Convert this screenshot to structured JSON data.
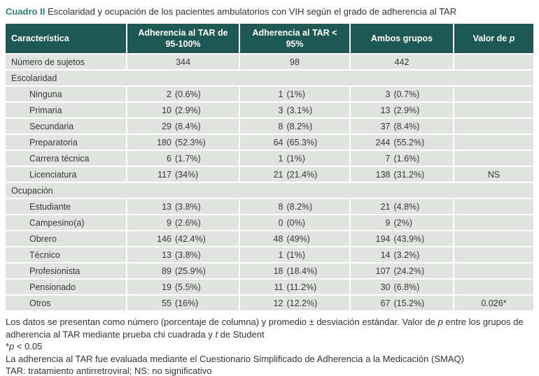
{
  "title": {
    "label": "Cuadro II",
    "text": "Escolaridad y ocupación de los pacientes ambulatorios con VIH según el grado de adherencia al TAR"
  },
  "colors": {
    "header_bg": "#1E5854",
    "row_bg": "#E0E3E0",
    "title_accent": "#2F7E79",
    "header_text": "#FFFFFF",
    "body_text": "#383838"
  },
  "table": {
    "headers": [
      "Característica",
      "Adherencia al TAR de 95-100%",
      "Adherencia al TAR < 95%",
      "Ambos grupos",
      {
        "pre": "Valor de ",
        "italic": "p"
      }
    ],
    "rows": [
      {
        "type": "data",
        "label": "Número de sujetos",
        "indent": false,
        "cells": [
          [
            "344",
            ""
          ],
          [
            "98",
            ""
          ],
          [
            "442",
            ""
          ]
        ],
        "p": ""
      },
      {
        "type": "section",
        "label": "Escolaridad"
      },
      {
        "type": "data",
        "label": "Ninguna",
        "indent": true,
        "cells": [
          [
            "2",
            "(0.6%)"
          ],
          [
            "1",
            "(1%)"
          ],
          [
            "3",
            "(0.7%)"
          ]
        ],
        "p": ""
      },
      {
        "type": "data",
        "label": "Primaria",
        "indent": true,
        "cells": [
          [
            "10",
            "(2.9%)"
          ],
          [
            "3",
            "(3.1%)"
          ],
          [
            "13",
            "(2.9%)"
          ]
        ],
        "p": ""
      },
      {
        "type": "data",
        "label": "Secundaria",
        "indent": true,
        "cells": [
          [
            "29",
            "(8.4%)"
          ],
          [
            "8",
            "(8.2%)"
          ],
          [
            "37",
            "(8.4%)"
          ]
        ],
        "p": ""
      },
      {
        "type": "data",
        "label": "Preparatoria",
        "indent": true,
        "cells": [
          [
            "180",
            "(52.3%)"
          ],
          [
            "64",
            "(65.3%)"
          ],
          [
            "244",
            "(55.2%)"
          ]
        ],
        "p": ""
      },
      {
        "type": "data",
        "label": "Carrera técnica",
        "indent": true,
        "cells": [
          [
            "6",
            "(1.7%)"
          ],
          [
            "1",
            "(1%)"
          ],
          [
            "7",
            "(1.6%)"
          ]
        ],
        "p": ""
      },
      {
        "type": "data",
        "label": "Licenciatura",
        "indent": true,
        "cells": [
          [
            "117",
            "(34%)"
          ],
          [
            "21",
            "(21.4%)"
          ],
          [
            "138",
            "(31.2%)"
          ]
        ],
        "p": "NS"
      },
      {
        "type": "section",
        "label": "Ocupación"
      },
      {
        "type": "data",
        "label": "Estudiante",
        "indent": true,
        "cells": [
          [
            "13",
            "(3.8%)"
          ],
          [
            "8",
            "(8.2%)"
          ],
          [
            "21",
            "(4.8%)"
          ]
        ],
        "p": ""
      },
      {
        "type": "data",
        "label": "Campesino(a)",
        "indent": true,
        "cells": [
          [
            "9",
            "(2.6%)"
          ],
          [
            "0",
            "(0%)"
          ],
          [
            "9",
            "(2%)"
          ]
        ],
        "p": ""
      },
      {
        "type": "data",
        "label": "Obrero",
        "indent": true,
        "cells": [
          [
            "146",
            "(42.4%)"
          ],
          [
            "48",
            "(49%)"
          ],
          [
            "194",
            "(43.9%)"
          ]
        ],
        "p": ""
      },
      {
        "type": "data",
        "label": "Técnico",
        "indent": true,
        "cells": [
          [
            "13",
            "(3.8%)"
          ],
          [
            "1",
            "(1%)"
          ],
          [
            "14",
            "(3.2%)"
          ]
        ],
        "p": ""
      },
      {
        "type": "data",
        "label": "Profesionista",
        "indent": true,
        "cells": [
          [
            "89",
            "(25.9%)"
          ],
          [
            "18",
            "(18.4%)"
          ],
          [
            "107",
            "(24.2%)"
          ]
        ],
        "p": ""
      },
      {
        "type": "data",
        "label": "Pensionado",
        "indent": true,
        "cells": [
          [
            "19",
            "(5.5%)"
          ],
          [
            "11",
            "(11.2%)"
          ],
          [
            "30",
            "(6.8%)"
          ]
        ],
        "p": ""
      },
      {
        "type": "data",
        "label": "Otros",
        "indent": true,
        "cells": [
          [
            "55",
            "(16%)"
          ],
          [
            "12",
            "(12.2%)"
          ],
          [
            "67",
            "(15.2%)"
          ]
        ],
        "p": "0.026*"
      }
    ]
  },
  "footnotes": [
    [
      [
        "Los datos se presentan como número (porcentaje de columna) y promedio ± desviación estándar. Valor de ",
        0
      ],
      [
        "p",
        1
      ],
      [
        " entre los grupos de adherencia al TAR mediante prueba chi cuadrada y ",
        0
      ],
      [
        "t",
        1
      ],
      [
        " de Student",
        0
      ]
    ],
    [
      [
        "*",
        0
      ],
      [
        "p",
        1
      ],
      [
        " < 0.05",
        0
      ]
    ],
    [
      [
        "La adherencia al TAR fue evaluada mediante el Cuestionario Simplificado de Adherencia a la Medicación (SMAQ)",
        0
      ]
    ],
    [
      [
        "TAR: tratamiento antirretroviral; NS: no significativo",
        0
      ]
    ]
  ]
}
